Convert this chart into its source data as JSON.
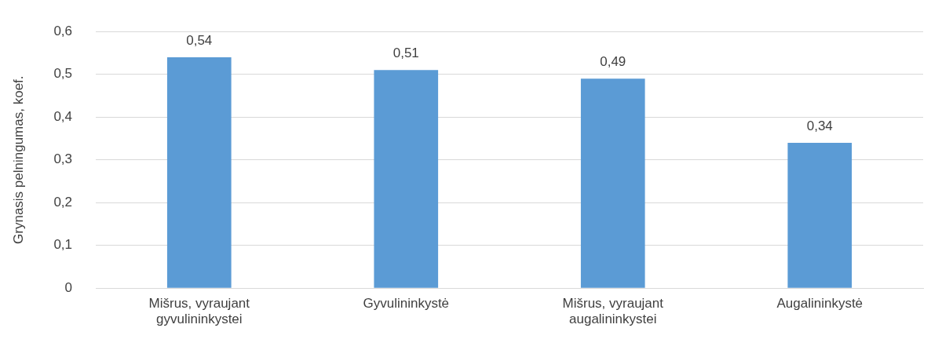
{
  "chart_data": {
    "type": "bar",
    "ylabel": "Grynasis pelningumas, koef.",
    "categories": [
      "Mišrus, vyraujant gyvulininkystei",
      "Gyvulininkystė",
      "Mišrus, vyraujant augalininkystei",
      "Augalininkystė"
    ],
    "values": [
      0.54,
      0.51,
      0.49,
      0.34
    ],
    "value_labels": [
      "0,54",
      "0,51",
      "0,49",
      "0,34"
    ],
    "color": "#5b9bd5",
    "ylim": [
      0,
      0.6
    ],
    "yticks": [
      {
        "value": 0,
        "label": "0"
      },
      {
        "value": 0.1,
        "label": "0,1"
      },
      {
        "value": 0.2,
        "label": "0,2"
      },
      {
        "value": 0.3,
        "label": "0,3"
      },
      {
        "value": 0.4,
        "label": "0,4"
      },
      {
        "value": 0.5,
        "label": "0,5"
      },
      {
        "value": 0.6,
        "label": "0,6"
      }
    ],
    "grid": "y",
    "legend": false
  }
}
